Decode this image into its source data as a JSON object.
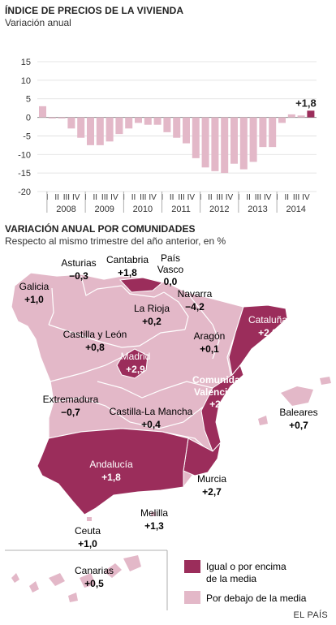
{
  "chart_data": [
    {
      "type": "bar",
      "title": "ÍNDICE DE PRECIOS DE LA VIVIENDA",
      "subtitle": "Variación anual",
      "ylim": [
        -20,
        15
      ],
      "yticks": [
        15,
        10,
        5,
        0,
        -5,
        -10,
        -15,
        -20
      ],
      "quarter_labels": [
        "I",
        "II",
        "III",
        "IV"
      ],
      "years": [
        "2008",
        "2009",
        "2010",
        "2011",
        "2012",
        "2013",
        "2014"
      ],
      "highlight_color": "#9b2d5b",
      "bar_color": "#e3b8c8",
      "values": [
        3.0,
        -0.3,
        -0.3,
        -3.0,
        -5.5,
        -7.5,
        -7.5,
        -6.5,
        -4.5,
        -3.0,
        -1.5,
        -2.0,
        -2.0,
        -4.0,
        -5.5,
        -7.0,
        -11.0,
        -13.5,
        -14.5,
        -15.0,
        -12.5,
        -14.0,
        -12.0,
        -8.0,
        -8.0,
        -1.5,
        0.8,
        0.5,
        1.8
      ],
      "highlight_label": "+1,8"
    },
    {
      "type": "map",
      "title": "VARIACIÓN ANUAL POR COMUNIDADES",
      "subtitle": "Respecto al mismo trimestre del año anterior, en %",
      "regions": [
        {
          "name": "Galicia",
          "value": "+1,0",
          "above": false
        },
        {
          "name": "Asturias",
          "value": "−0,3",
          "above": false
        },
        {
          "name": "Cantabria",
          "value": "+1,8",
          "above": true
        },
        {
          "name": "País Vasco",
          "value": "0,0",
          "above": false
        },
        {
          "name": "Navarra",
          "value": "−4,2",
          "above": false
        },
        {
          "name": "La Rioja",
          "value": "+0,2",
          "above": false
        },
        {
          "name": "Cataluña",
          "value": "+2,2",
          "above": true
        },
        {
          "name": "Castilla y León",
          "value": "+0,8",
          "above": false
        },
        {
          "name": "Aragón",
          "value": "+0,1",
          "above": false
        },
        {
          "name": "Madrid",
          "value": "+2,9",
          "above": true
        },
        {
          "name": "Comunidad Valenciana",
          "value": "+2,8",
          "above": true
        },
        {
          "name": "Extremadura",
          "value": "−0,7",
          "above": false
        },
        {
          "name": "Castilla-La Mancha",
          "value": "+0,4",
          "above": false
        },
        {
          "name": "Baleares",
          "value": "+0,7",
          "above": false
        },
        {
          "name": "Andalucía",
          "value": "+1,8",
          "above": true
        },
        {
          "name": "Murcia",
          "value": "+2,7",
          "above": true
        },
        {
          "name": "Ceuta",
          "value": "+1,0",
          "above": false
        },
        {
          "name": "Melilla",
          "value": "+1,3",
          "above": false
        },
        {
          "name": "Canarias",
          "value": "+0,5",
          "above": false
        }
      ],
      "legend": [
        {
          "label": "Igual o por encima de la media",
          "color": "#9b2d5b"
        },
        {
          "label": "Por debajo de la media",
          "color": "#e3b8c8"
        }
      ],
      "legend_lines": {
        "above": [
          "Igual o por encima",
          "de la media"
        ],
        "below": [
          "Por debajo de la media"
        ]
      }
    }
  ],
  "labels": {
    "region": {
      "galicia": "Galicia",
      "asturias": "Asturias",
      "cantabria": "Cantabria",
      "pais_vasco_1": "País",
      "pais_vasco_2": "Vasco",
      "navarra": "Navarra",
      "la_rioja": "La Rioja",
      "cataluna": "Cataluña",
      "castilla_leon": "Castilla y León",
      "aragon": "Aragón",
      "madrid": "Madrid",
      "valenciana_1": "Comunidad",
      "valenciana_2": "Valenciana",
      "extremadura": "Extremadura",
      "castilla_mancha": "Castilla-La Mancha",
      "baleares": "Baleares",
      "andalucia": "Andalucía",
      "murcia": "Murcia",
      "ceuta": "Ceuta",
      "melilla": "Melilla",
      "canarias": "Canarias"
    }
  },
  "credit": "EL PAÍS"
}
